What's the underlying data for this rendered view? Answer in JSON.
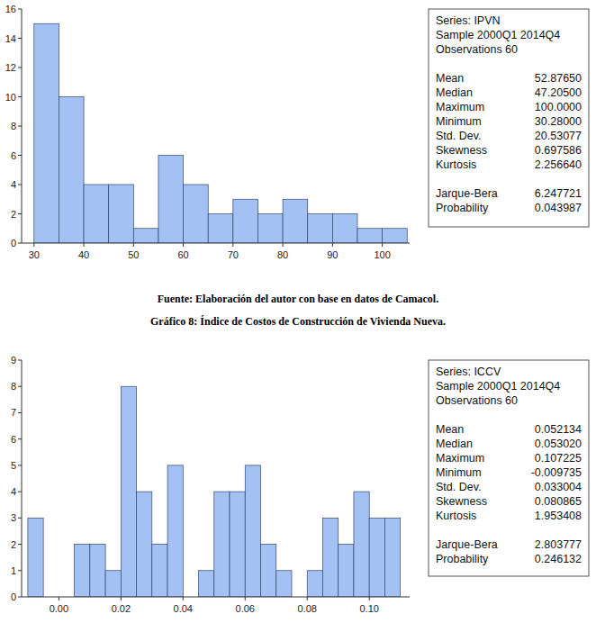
{
  "chart_data": [
    {
      "type": "histogram",
      "source": "Fuente: Elaboración del autor con base en datos de Camacol.",
      "bins": [
        30,
        35,
        40,
        45,
        50,
        55,
        60,
        65,
        70,
        75,
        80,
        85,
        90,
        95,
        100,
        105
      ],
      "values": [
        15,
        10,
        4,
        4,
        1,
        6,
        4,
        2,
        3,
        2,
        3,
        2,
        2,
        1,
        1
      ],
      "color": "#a3c1f2",
      "xlim": [
        27.5,
        105.5
      ],
      "xticks": [
        30,
        40,
        50,
        60,
        70,
        80,
        90,
        100
      ],
      "ylim": [
        0,
        16
      ],
      "yticks": [
        0,
        2,
        4,
        6,
        8,
        10,
        12,
        14,
        16
      ],
      "grid": false,
      "annotations": {
        "header": [
          "Series: IPVN",
          "Sample 2000Q1 2014Q4",
          "Observations 60"
        ],
        "stats": [
          [
            "Mean",
            "52.87650"
          ],
          [
            "Median",
            "47.20500"
          ],
          [
            "Maximum",
            "100.0000"
          ],
          [
            "Minimum",
            "30.28000"
          ],
          [
            "Std. Dev.",
            "20.53077"
          ],
          [
            "Skewness",
            "0.697586"
          ],
          [
            "Kurtosis",
            "2.256640"
          ]
        ],
        "tests": [
          [
            "Jarque-Bera",
            "6.247721"
          ],
          [
            "Probability",
            "0.043987"
          ]
        ]
      }
    },
    {
      "type": "histogram",
      "title": "Gráfico 8: Índice de Costos de Construcción de Vivienda Nueva.",
      "bins": [
        -0.01,
        -0.005,
        0,
        0.005,
        0.01,
        0.015,
        0.02,
        0.025,
        0.03,
        0.035,
        0.04,
        0.045,
        0.05,
        0.055,
        0.06,
        0.065,
        0.07,
        0.075,
        0.08,
        0.085,
        0.09,
        0.095,
        0.1,
        0.105,
        0.11
      ],
      "values": [
        3,
        0,
        0,
        2,
        2,
        1,
        8,
        4,
        2,
        5,
        0,
        1,
        4,
        4,
        5,
        2,
        1,
        0,
        1,
        3,
        2,
        4,
        3,
        3
      ],
      "color": "#a3c1f2",
      "xlim": [
        -0.012,
        0.113
      ],
      "xticks": [
        {
          "value": 0,
          "label": "0.00"
        },
        {
          "value": 0.02,
          "label": "0.02"
        },
        {
          "value": 0.04,
          "label": "0.04"
        },
        {
          "value": 0.06,
          "label": "0.06"
        },
        {
          "value": 0.08,
          "label": "0.08"
        },
        {
          "value": 0.1,
          "label": "0.10"
        }
      ],
      "ylim": [
        0,
        9
      ],
      "yticks": [
        0,
        1,
        2,
        3,
        4,
        5,
        6,
        7,
        8,
        9
      ],
      "grid": false,
      "annotations": {
        "header": [
          "Series: ICCV",
          "Sample 2000Q1 2014Q4",
          "Observations 60"
        ],
        "stats": [
          [
            "Mean",
            "0.052134"
          ],
          [
            "Median",
            "0.053020"
          ],
          [
            "Maximum",
            "0.107225"
          ],
          [
            "Minimum",
            "-0.009735"
          ],
          [
            "Std. Dev.",
            "0.033004"
          ],
          [
            "Skewness",
            "0.080865"
          ],
          [
            "Kurtosis",
            "1.953408"
          ]
        ],
        "tests": [
          [
            "Jarque-Bera",
            "2.803777"
          ],
          [
            "Probability",
            "0.246132"
          ]
        ]
      }
    }
  ]
}
